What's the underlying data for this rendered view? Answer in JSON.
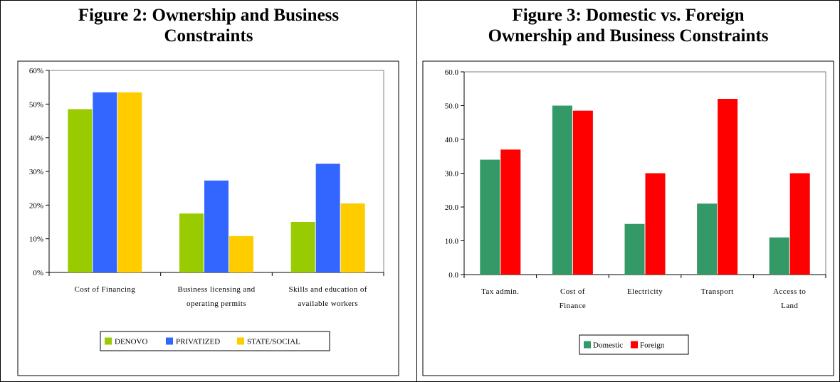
{
  "charts": [
    {
      "title_lines": [
        "Figure 2: Ownership and Business",
        "Constraints"
      ],
      "chart_data": {
        "type": "bar",
        "title": "Figure 2: Ownership and Business Constraints",
        "categories": [
          [
            "Cost of Financing"
          ],
          [
            "Business licensing and",
            "operating permits"
          ],
          [
            "Skills and education of",
            "available workers"
          ]
        ],
        "series": [
          {
            "name": "DENOVO",
            "color": "#99cc00",
            "values": [
              48.5,
              17.5,
              15
            ]
          },
          {
            "name": "PRIVATIZED",
            "color": "#3366ff",
            "values": [
              53.5,
              27.3,
              32.3
            ]
          },
          {
            "name": "STATE/SOCIAL",
            "color": "#ffcc00",
            "values": [
              53.5,
              10.8,
              20.5
            ]
          }
        ],
        "ylim": [
          0,
          60
        ],
        "yticks": [
          "0%",
          "10%",
          "20%",
          "30%",
          "40%",
          "50%",
          "60%"
        ],
        "ytick_values": [
          0,
          10,
          20,
          30,
          40,
          50,
          60
        ],
        "xlabel": "",
        "ylabel": "",
        "grid": false,
        "legend": "bottom"
      }
    },
    {
      "title_lines": [
        "Figure 3: Domestic vs. Foreign",
        "Ownership and Business Constraints"
      ],
      "chart_data": {
        "type": "bar",
        "title": "Figure 3: Domestic vs. Foreign Ownership and Business Constraints",
        "categories": [
          [
            "Tax admin."
          ],
          [
            "Cost of",
            "Finance"
          ],
          [
            "Electricity"
          ],
          [
            "Transport"
          ],
          [
            "Access to",
            "Land"
          ]
        ],
        "series": [
          {
            "name": "Domestic",
            "color": "#339966",
            "values": [
              34,
              50,
              15,
              21,
              11
            ]
          },
          {
            "name": "Foreign",
            "color": "#ff0000",
            "values": [
              37,
              48.5,
              30,
              52,
              30
            ]
          }
        ],
        "ylim": [
          0,
          60
        ],
        "yticks": [
          "0.0",
          "10.0",
          "20.0",
          "30.0",
          "40.0",
          "50.0",
          "60.0"
        ],
        "ytick_values": [
          0,
          10,
          20,
          30,
          40,
          50,
          60
        ],
        "xlabel": "",
        "ylabel": "",
        "grid": false,
        "legend": "bottom"
      }
    }
  ]
}
